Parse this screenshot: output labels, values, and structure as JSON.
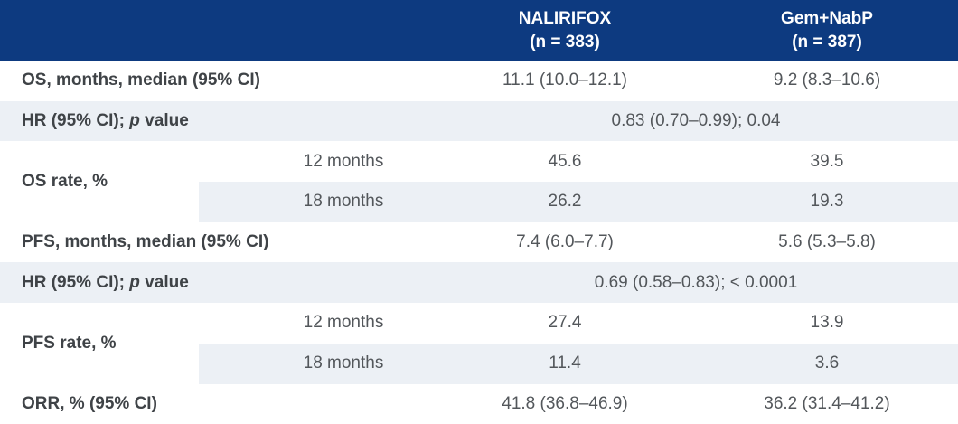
{
  "table": {
    "title_semantic": "Efficacy outcomes table",
    "header": {
      "arms": [
        {
          "name": "NALIRIFOX",
          "n": "(n = 383)"
        },
        {
          "name": "Gem+NabP",
          "n": "(n = 387)"
        }
      ]
    },
    "labels": {
      "hr": {
        "prefix": "HR (95% CI); ",
        "p": "p",
        "suffix": " value"
      }
    },
    "rows": {
      "os_median": {
        "label": "OS, months, median (95% CI)",
        "nalirifox": "11.1 (10.0–12.1)",
        "gemnabp": "9.2 (8.3–10.6)"
      },
      "os_hr": {
        "value": "0.83 (0.70–0.99); 0.04"
      },
      "os_rate": {
        "label": "OS rate, %",
        "sub": [
          {
            "time": "12 months",
            "nalirifox": "45.6",
            "gemnabp": "39.5"
          },
          {
            "time": "18 months",
            "nalirifox": "26.2",
            "gemnabp": "19.3"
          }
        ]
      },
      "pfs_median": {
        "label": "PFS, months, median (95% CI)",
        "nalirifox": "7.4 (6.0–7.7)",
        "gemnabp": "5.6 (5.3–5.8)"
      },
      "pfs_hr": {
        "value": "0.69 (0.58–0.83); < 0.0001"
      },
      "pfs_rate": {
        "label": "PFS rate, %",
        "sub": [
          {
            "time": "12 months",
            "nalirifox": "27.4",
            "gemnabp": "13.9"
          },
          {
            "time": "18 months",
            "nalirifox": "11.4",
            "gemnabp": "3.6"
          }
        ]
      },
      "orr": {
        "label": "ORR, % (95% CI)",
        "nalirifox": "41.8 (36.8–46.9)",
        "gemnabp": "36.2 (31.4–41.2)"
      }
    }
  },
  "colors": {
    "header_bg": "#0d3a80",
    "header_text": "#ffffff",
    "row_shade": "#ecf0f5",
    "row_bg": "#ffffff",
    "label_text": "#3f4347",
    "value_text": "#53575b"
  }
}
